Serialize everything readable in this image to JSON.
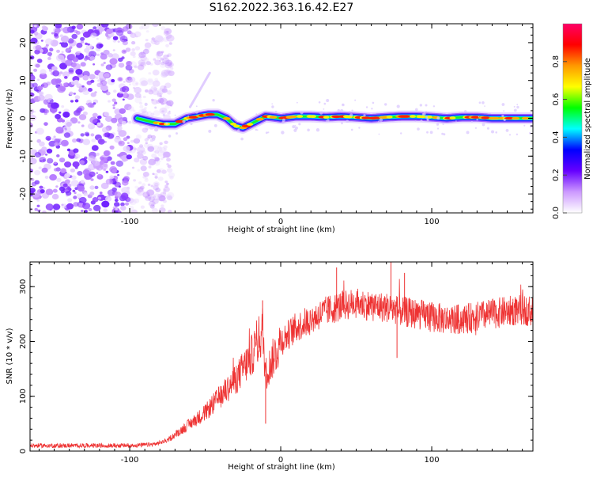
{
  "title": "S162.2022.363.16.42.E27",
  "chart_data": [
    {
      "type": "heatmap",
      "xlabel": "Height of straight line (km)",
      "ylabel": "Frequency (Hz)",
      "xlim": [
        -166,
        167
      ],
      "ylim": [
        -25,
        25
      ],
      "xticks": [
        -100,
        0,
        100
      ],
      "yticks": [
        -20,
        -10,
        0,
        10,
        20
      ],
      "colorbar": {
        "label": "Normalized spectral amplitude",
        "range": [
          0,
          1
        ],
        "ticks": [
          0.0,
          0.2,
          0.4,
          0.6,
          0.8
        ],
        "colors": [
          "#ffffff",
          "#cc99ff",
          "#6600ff",
          "#0000ff",
          "#00ffff",
          "#00ff00",
          "#ffff00",
          "#ff9900",
          "#ff0000",
          "#ff0066"
        ]
      },
      "ridge": {
        "x": [
          -95,
          -85,
          -78,
          -70,
          -62,
          -55,
          -48,
          -42,
          -36,
          -30,
          -25,
          -20,
          -15,
          -10,
          -5,
          0,
          10,
          20,
          30,
          40,
          50,
          60,
          70,
          80,
          90,
          100,
          110,
          120,
          130,
          140,
          150,
          160,
          167
        ],
        "y": [
          0,
          -1,
          -1.5,
          -1.5,
          0,
          0.5,
          1,
          1,
          0,
          -2,
          -2.5,
          -1.5,
          -0.5,
          0.5,
          0.3,
          0,
          0.5,
          0.5,
          0.3,
          0.5,
          0.3,
          0,
          0.3,
          0.5,
          0.5,
          0.3,
          0,
          0.3,
          0.3,
          0,
          0,
          0,
          0
        ]
      },
      "noise_region": [
        -166,
        -80
      ]
    },
    {
      "type": "line",
      "xlabel": "Height of straight line (km)",
      "ylabel": "SNR (10 * v/v)",
      "xlim": [
        -166,
        167
      ],
      "ylim": [
        0,
        345
      ],
      "xticks": [
        -100,
        0,
        100
      ],
      "yticks": [
        0,
        100,
        200,
        300
      ],
      "color": "#ee3333",
      "envelope": {
        "x": [
          -166,
          -100,
          -85,
          -80,
          -75,
          -70,
          -60,
          -50,
          -40,
          -30,
          -20,
          -15,
          -12,
          -10,
          -5,
          0,
          10,
          20,
          30,
          40,
          50,
          60,
          70,
          80,
          90,
          100,
          110,
          120,
          130,
          140,
          150,
          160,
          167
        ],
        "y": [
          10,
          10,
          12,
          15,
          20,
          30,
          50,
          70,
          100,
          130,
          170,
          200,
          220,
          140,
          170,
          200,
          225,
          240,
          255,
          265,
          270,
          265,
          262,
          255,
          250,
          245,
          240,
          240,
          245,
          250,
          255,
          258,
          255
        ]
      },
      "spikes": [
        {
          "x": -12,
          "y": 275
        },
        {
          "x": -10,
          "y": 50
        },
        {
          "x": 37,
          "y": 335
        },
        {
          "x": 73,
          "y": 345
        },
        {
          "x": 82,
          "y": 325
        },
        {
          "x": 77,
          "y": 170
        }
      ]
    }
  ]
}
